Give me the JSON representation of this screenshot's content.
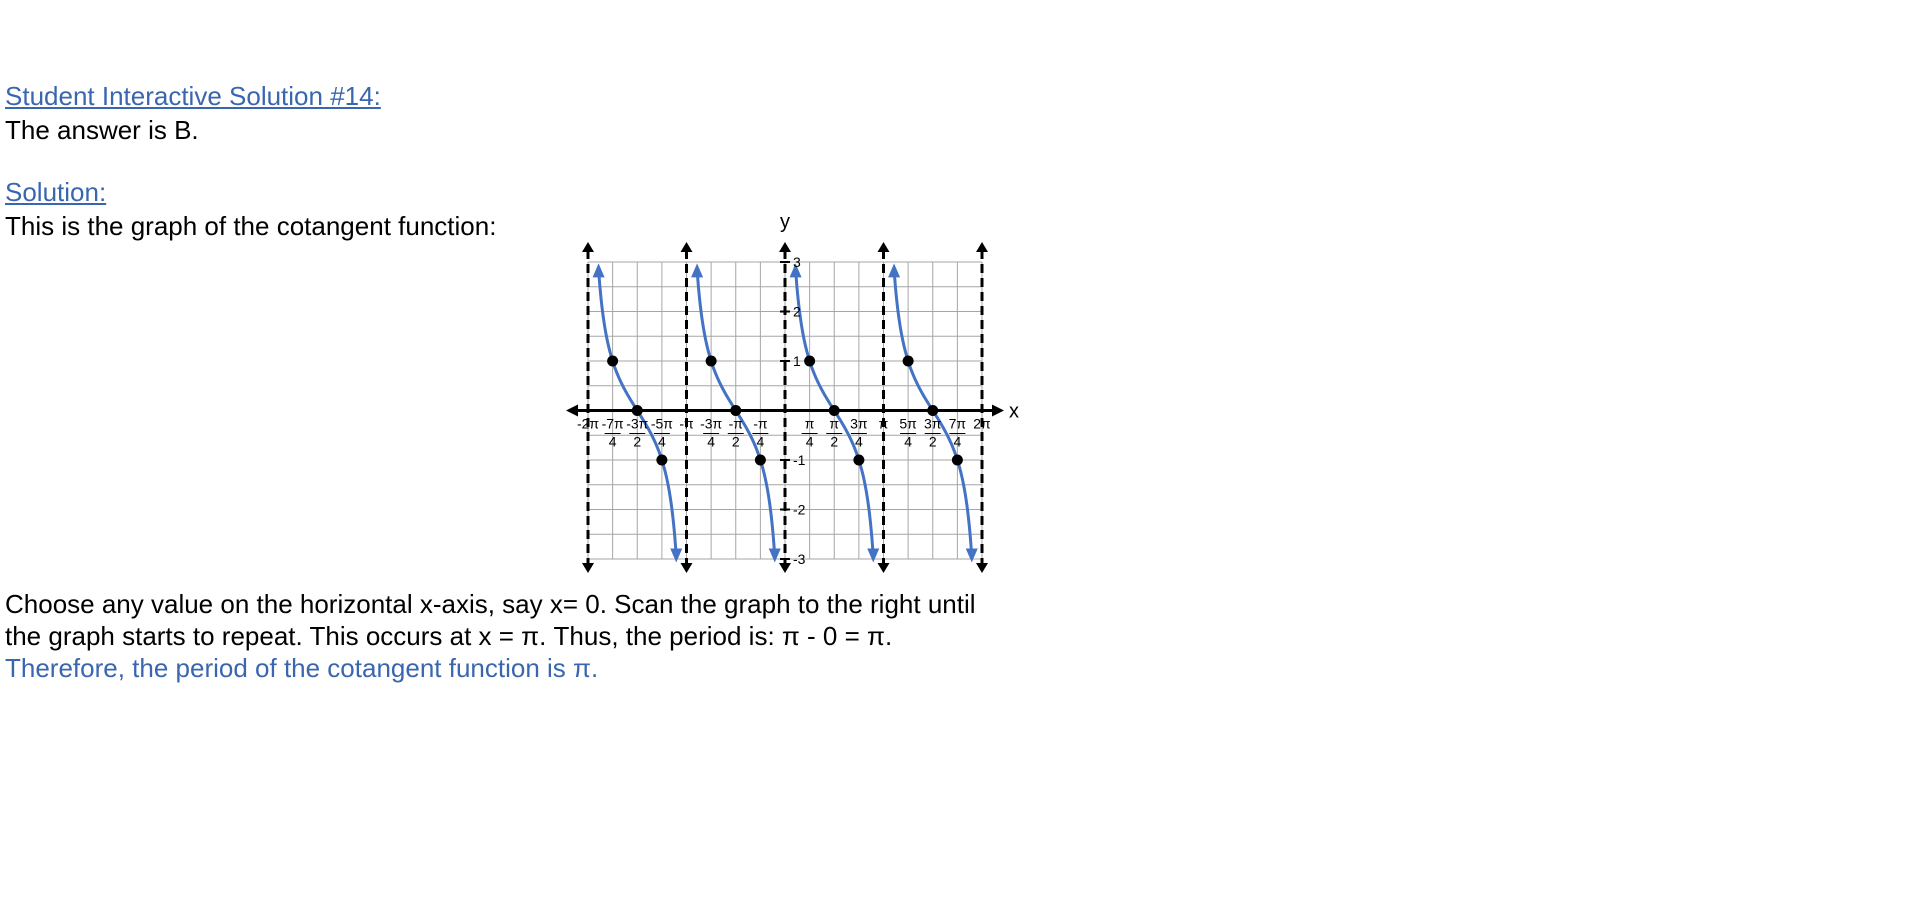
{
  "header": {
    "title": "Student Interactive Solution #14:",
    "answer": "The answer is B."
  },
  "solution": {
    "heading": "Solution:",
    "intro": "This is the graph of the cotangent function:",
    "line1": "Choose any value on the horizontal x-axis, say x= 0.  Scan the graph to the right until",
    "line2": "the graph starts to repeat.  This occurs  at x = π.  Thus, the period is:  π - 0 = π.",
    "conclusion": "Therefore, the period of the cotangent function is π."
  },
  "colors": {
    "link": "#3a66b0",
    "curve": "#4472c4",
    "grid": "#a6a6a6"
  },
  "chart_data": {
    "type": "line",
    "function": "cot(x)",
    "xlabel": "x",
    "ylabel": "y",
    "xlim_pi": [
      -2,
      2
    ],
    "ylim": [
      -3,
      3
    ],
    "grid": true,
    "asymptotes_pi": [
      -2,
      -1,
      0,
      1,
      2
    ],
    "x_tick_labels": [
      {
        "x_pi": -2,
        "top": "-2π",
        "bottom": ""
      },
      {
        "x_pi": -1.75,
        "top": "-7π",
        "bottom": "4"
      },
      {
        "x_pi": -1.5,
        "top": "-3π",
        "bottom": "2"
      },
      {
        "x_pi": -1.25,
        "top": "-5π",
        "bottom": "4"
      },
      {
        "x_pi": -1,
        "top": "-π",
        "bottom": ""
      },
      {
        "x_pi": -0.75,
        "top": "-3π",
        "bottom": "4"
      },
      {
        "x_pi": -0.5,
        "top": "-π",
        "bottom": "2"
      },
      {
        "x_pi": -0.25,
        "top": "-π",
        "bottom": "4"
      },
      {
        "x_pi": 0.25,
        "top": "π",
        "bottom": "4"
      },
      {
        "x_pi": 0.5,
        "top": "π",
        "bottom": "2"
      },
      {
        "x_pi": 0.75,
        "top": "3π",
        "bottom": "4"
      },
      {
        "x_pi": 1,
        "top": "π",
        "bottom": ""
      },
      {
        "x_pi": 1.25,
        "top": "5π",
        "bottom": "4"
      },
      {
        "x_pi": 1.5,
        "top": "3π",
        "bottom": "2"
      },
      {
        "x_pi": 1.75,
        "top": "7π",
        "bottom": "4"
      },
      {
        "x_pi": 2,
        "top": "2π",
        "bottom": ""
      }
    ],
    "y_tick_labels": [
      {
        "y": 3,
        "label": "3"
      },
      {
        "y": 2,
        "label": "2"
      },
      {
        "y": 1,
        "label": "1"
      },
      {
        "y": -1,
        "label": "-1"
      },
      {
        "y": -2,
        "label": "-2"
      },
      {
        "y": -3,
        "label": "-3"
      }
    ],
    "key_points": [
      {
        "x_pi": -1.75,
        "y": 1
      },
      {
        "x_pi": -1.5,
        "y": 0
      },
      {
        "x_pi": -1.25,
        "y": -1
      },
      {
        "x_pi": -0.75,
        "y": 1
      },
      {
        "x_pi": -0.5,
        "y": 0
      },
      {
        "x_pi": -0.25,
        "y": -1
      },
      {
        "x_pi": 0.25,
        "y": 1
      },
      {
        "x_pi": 0.5,
        "y": 0
      },
      {
        "x_pi": 0.75,
        "y": -1
      },
      {
        "x_pi": 1.25,
        "y": 1
      },
      {
        "x_pi": 1.5,
        "y": 0
      },
      {
        "x_pi": 1.75,
        "y": -1
      }
    ]
  }
}
